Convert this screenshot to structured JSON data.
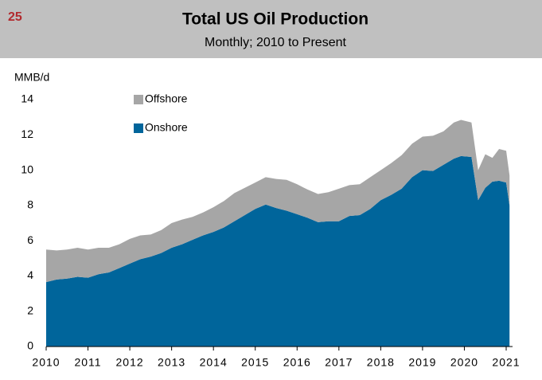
{
  "chart_data": {
    "type": "stacked_area",
    "page_number": "25",
    "title": "Total US Oil Production",
    "subtitle": "Monthly; 2010 to Present",
    "y_label": "MMB/d",
    "x": [
      2010.0,
      2010.25,
      2010.5,
      2010.75,
      2011.0,
      2011.25,
      2011.5,
      2011.75,
      2012.0,
      2012.25,
      2012.5,
      2012.75,
      2013.0,
      2013.25,
      2013.5,
      2013.75,
      2014.0,
      2014.25,
      2014.5,
      2014.75,
      2015.0,
      2015.25,
      2015.5,
      2015.75,
      2016.0,
      2016.25,
      2016.5,
      2016.75,
      2017.0,
      2017.25,
      2017.5,
      2017.75,
      2018.0,
      2018.25,
      2018.5,
      2018.75,
      2019.0,
      2019.25,
      2019.5,
      2019.75,
      2019.92,
      2020.17,
      2020.33,
      2020.5,
      2020.67,
      2020.83,
      2021.0,
      2021.08
    ],
    "series": [
      {
        "name": "Onshore",
        "color": "#00659b",
        "values": [
          3.65,
          3.8,
          3.85,
          3.95,
          3.9,
          4.1,
          4.2,
          4.45,
          4.7,
          4.95,
          5.1,
          5.3,
          5.6,
          5.8,
          6.05,
          6.3,
          6.5,
          6.75,
          7.1,
          7.45,
          7.8,
          8.05,
          7.85,
          7.7,
          7.5,
          7.3,
          7.05,
          7.1,
          7.1,
          7.4,
          7.45,
          7.8,
          8.3,
          8.6,
          8.95,
          9.6,
          10.0,
          9.95,
          10.3,
          10.65,
          10.8,
          10.75,
          8.3,
          9.0,
          9.35,
          9.4,
          9.3,
          8.0
        ]
      },
      {
        "name": "Offshore",
        "color": "#a6a6a6",
        "values": [
          1.85,
          1.65,
          1.65,
          1.65,
          1.6,
          1.5,
          1.4,
          1.35,
          1.4,
          1.35,
          1.25,
          1.3,
          1.4,
          1.4,
          1.3,
          1.3,
          1.4,
          1.5,
          1.6,
          1.55,
          1.5,
          1.55,
          1.65,
          1.75,
          1.7,
          1.6,
          1.6,
          1.65,
          1.85,
          1.75,
          1.75,
          1.8,
          1.7,
          1.8,
          1.9,
          1.9,
          1.9,
          2.0,
          1.9,
          2.05,
          2.05,
          1.95,
          1.7,
          1.9,
          1.35,
          1.8,
          1.8,
          1.7
        ]
      }
    ],
    "xlim": [
      2010,
      2021.3
    ],
    "xticks": [
      2010,
      2011,
      2012,
      2013,
      2014,
      2015,
      2016,
      2017,
      2018,
      2019,
      2020,
      2021
    ],
    "ylim": [
      0,
      14
    ],
    "yticks": [
      0,
      2,
      4,
      6,
      8,
      10,
      12,
      14
    ],
    "legend": "upper left"
  }
}
